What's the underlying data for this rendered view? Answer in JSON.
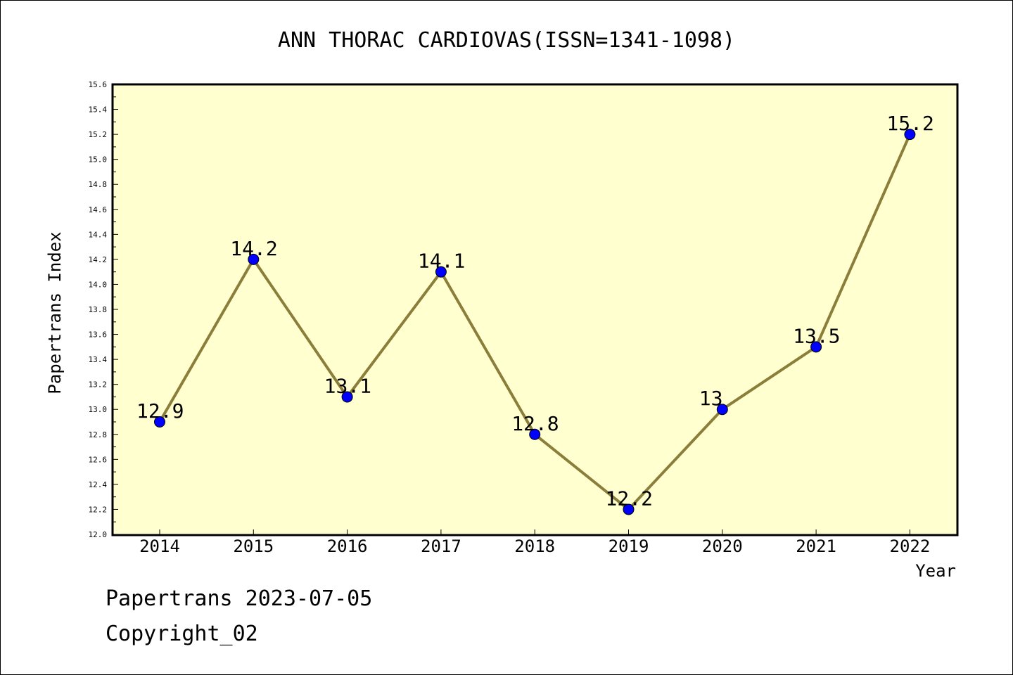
{
  "chart_data": {
    "type": "line",
    "title": "ANN THORAC CARDIOVAS(ISSN=1341-1098)",
    "xlabel": "Year",
    "ylabel": "Papertrans Index",
    "categories": [
      "2014",
      "2015",
      "2016",
      "2017",
      "2018",
      "2019",
      "2020",
      "2021",
      "2022"
    ],
    "series": [
      {
        "values": [
          12.9,
          14.2,
          13.1,
          14.1,
          12.8,
          12.2,
          13.0,
          13.5,
          15.2
        ],
        "data_labels": [
          "12.9",
          "14.2",
          "13.1",
          "14.1",
          "12.8",
          "12.2",
          "13",
          "13.5",
          "15.2"
        ]
      }
    ],
    "ylim": [
      12.0,
      15.6
    ],
    "yticks": [
      "12.0",
      "12.2",
      "12.4",
      "12.6",
      "12.8",
      "13.0",
      "13.2",
      "13.4",
      "13.6",
      "13.8",
      "14.0",
      "14.2",
      "14.4",
      "14.6",
      "14.8",
      "15.0",
      "15.2",
      "15.4",
      "15.6"
    ],
    "grid": false,
    "colors": {
      "plot_bg": "#ffffd0",
      "line": "#8b7d3a",
      "marker": "#0000ff"
    }
  },
  "footer": {
    "line1": "Papertrans 2023-07-05",
    "line2": "Copyright_02"
  }
}
